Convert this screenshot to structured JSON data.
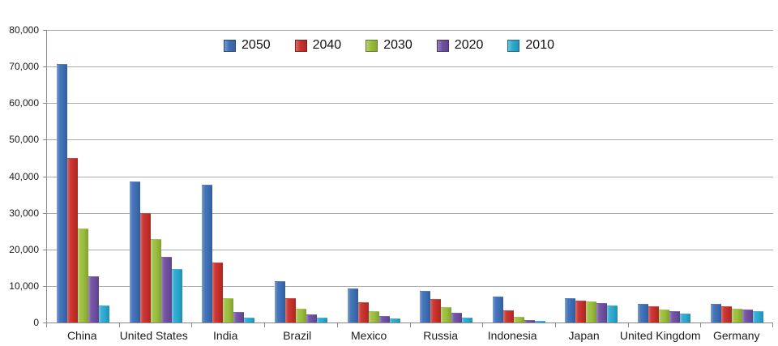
{
  "chart_data": {
    "type": "bar",
    "title": "",
    "xlabel": "",
    "ylabel": "",
    "categories": [
      "China",
      "United States",
      "India",
      "Brazil",
      "Mexico",
      "Russia",
      "Indonesia",
      "Japan",
      "United Kingdom",
      "Germany"
    ],
    "series": [
      {
        "name": "2050",
        "color": "#3E6FB7",
        "values": [
          70710,
          38514,
          37668,
          11366,
          9340,
          8580,
          7010,
          6677,
          5133,
          5024
        ]
      },
      {
        "name": "2040",
        "color": "#C8302B",
        "values": [
          45022,
          29823,
          16510,
          6631,
          5471,
          6320,
          3286,
          6042,
          4344,
          4388
        ]
      },
      {
        "name": "2030",
        "color": "#9ABD3D",
        "values": [
          25610,
          22817,
          6683,
          3720,
          3068,
          4265,
          1479,
          5814,
          3595,
          3761
        ]
      },
      {
        "name": "2020",
        "color": "#6F4FA0",
        "values": [
          12630,
          17978,
          2848,
          2194,
          1742,
          2554,
          752,
          5224,
          3101,
          3519
        ]
      },
      {
        "name": "2010",
        "color": "#2BA8CF",
        "values": [
          4667,
          14535,
          1256,
          1346,
          1009,
          1371,
          419,
          4604,
          2546,
          3083
        ]
      }
    ],
    "ylim": [
      0,
      80000
    ],
    "ytick_interval": 10000,
    "ytick_labels": [
      "0",
      "10,000",
      "20,000",
      "30,000",
      "40,000",
      "50,000",
      "60,000",
      "70,000",
      "80,000"
    ],
    "legend_position": "top-center",
    "grid": "horizontal"
  }
}
